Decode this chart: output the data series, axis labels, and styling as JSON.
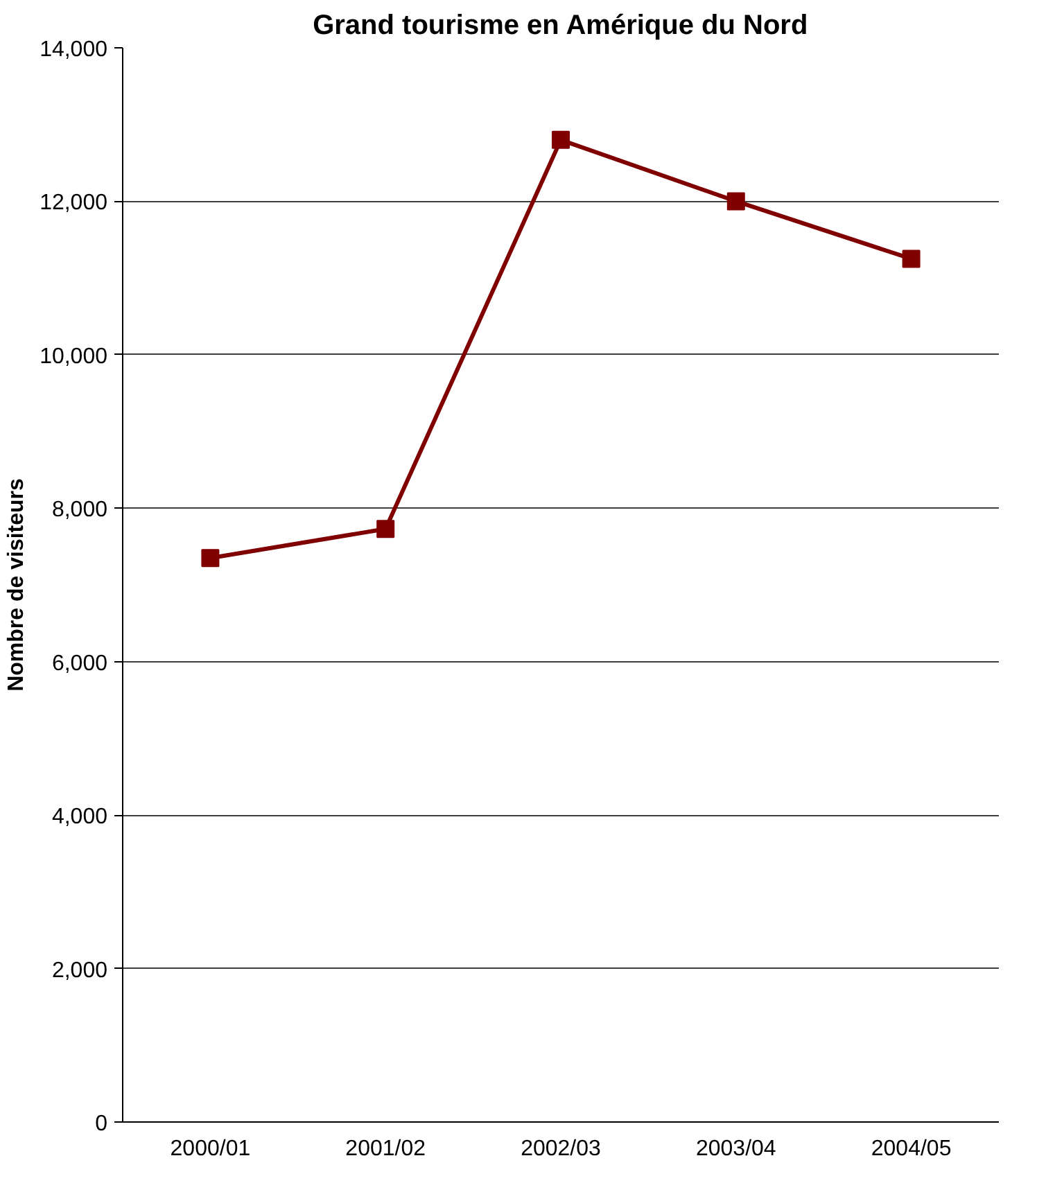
{
  "chart_data": {
    "type": "line",
    "title": "Grand tourisme en Amérique du Nord",
    "ylabel": "Nombre de visiteurs",
    "categories": [
      "2000/01",
      "2001/02",
      "2002/03",
      "2003/04",
      "2004/05"
    ],
    "series": [
      {
        "color": "#800000",
        "values": [
          7350,
          7730,
          12800,
          12000,
          11250
        ]
      }
    ],
    "ylim": [
      0,
      14000
    ],
    "yticks": [
      {
        "value": 0,
        "label": "0"
      },
      {
        "value": 2000,
        "label": "2,000"
      },
      {
        "value": 4000,
        "label": "4,000"
      },
      {
        "value": 6000,
        "label": "6,000"
      },
      {
        "value": 8000,
        "label": "8,000"
      },
      {
        "value": 10000,
        "label": "10,000"
      },
      {
        "value": 12000,
        "label": "12,000"
      },
      {
        "value": 14000,
        "label": "14,000"
      }
    ],
    "grid": "y",
    "marker": "square",
    "line_style": "solid"
  }
}
